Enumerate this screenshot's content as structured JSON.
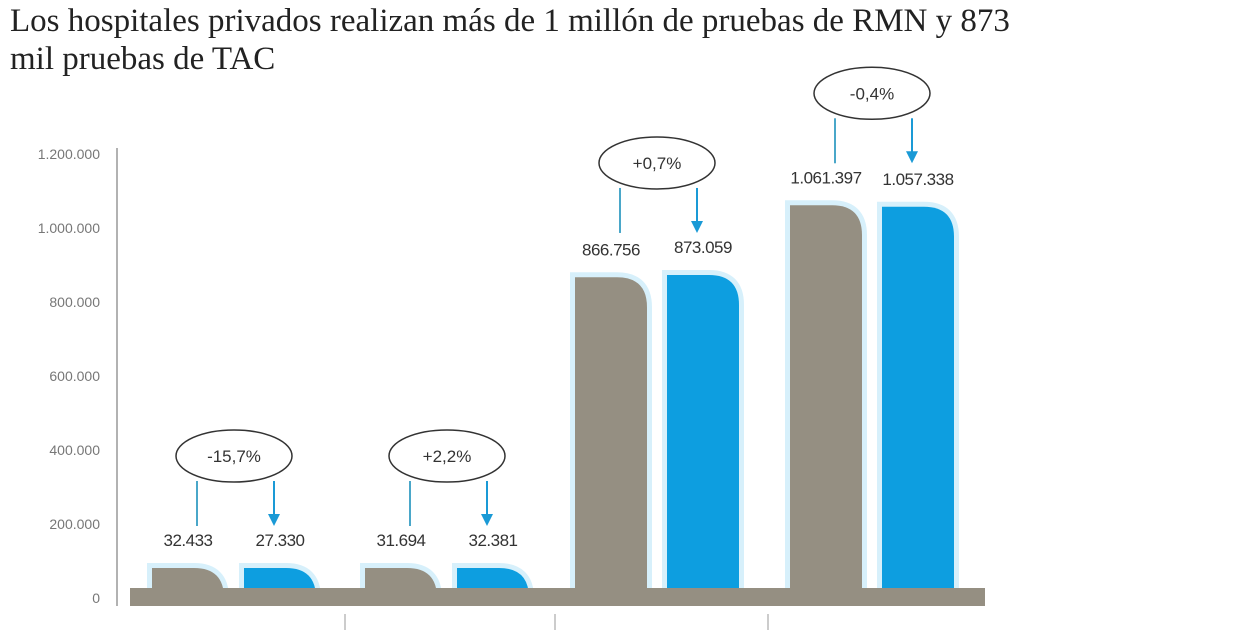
{
  "chart_data": {
    "type": "bar",
    "title": "Los hospitales privados realizan más de 1 millón de pruebas de RMN y 873 mil pruebas de TAC",
    "ylim": [
      0,
      1200000
    ],
    "yticks": [
      "0",
      "200.000",
      "400.000",
      "600.000",
      "800.000",
      "1.000.000",
      "1.200.000"
    ],
    "ytick_values": [
      0,
      200000,
      400000,
      600000,
      800000,
      1000000,
      1200000
    ],
    "grid": false,
    "series_colors": [
      "#958f82",
      "#0d9ee0"
    ],
    "groups": [
      {
        "values": [
          32433,
          27330
        ],
        "labels": [
          "32.433",
          "27.330"
        ],
        "change": "-15,7%"
      },
      {
        "values": [
          31694,
          32381
        ],
        "labels": [
          "31.694",
          "32.381"
        ],
        "change": "+2,2%"
      },
      {
        "values": [
          866756,
          873059
        ],
        "labels": [
          "866.756",
          "873.059"
        ],
        "change": "+0,7%"
      },
      {
        "values": [
          1061397,
          1057338
        ],
        "labels": [
          "1.061.397",
          "1.057.338"
        ],
        "change": "-0,4%"
      }
    ]
  }
}
